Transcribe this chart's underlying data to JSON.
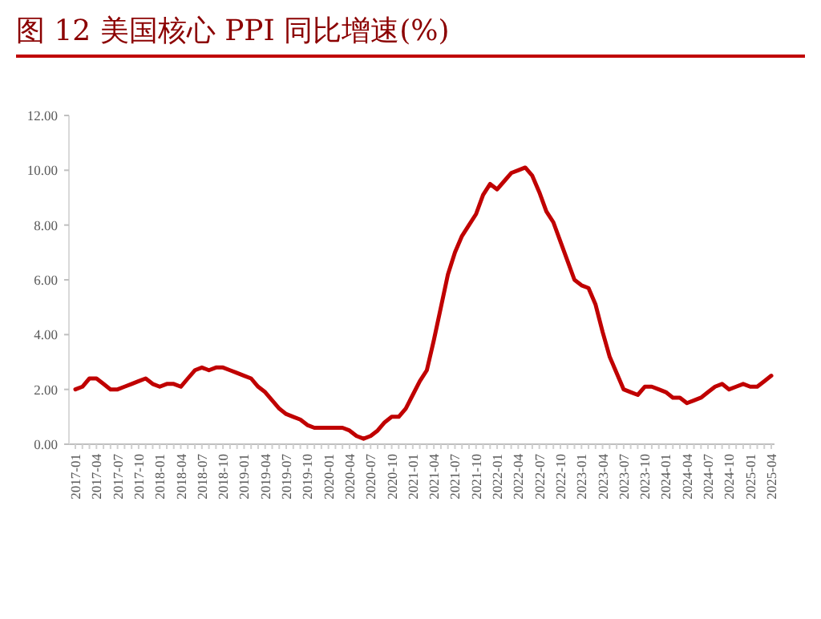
{
  "chart_data": {
    "type": "line",
    "title": "图 12 美国核心 PPI 同比增速(%)",
    "categories": [
      "2017-01",
      null,
      null,
      "2017-04",
      null,
      null,
      "2017-07",
      null,
      null,
      "2017-10",
      null,
      null,
      "2018-01",
      null,
      null,
      "2018-04",
      null,
      null,
      "2018-07",
      null,
      null,
      "2018-10",
      null,
      null,
      "2019-01",
      null,
      null,
      "2019-04",
      null,
      null,
      "2019-07",
      null,
      null,
      "2019-10",
      null,
      null,
      "2020-01",
      null,
      null,
      "2020-04",
      null,
      null,
      "2020-07",
      null,
      null,
      "2020-10",
      null,
      null,
      "2021-01",
      null,
      null,
      "2021-04",
      null,
      null,
      "2021-07",
      null,
      null,
      "2021-10",
      null,
      null,
      "2022-01",
      null,
      null,
      "2022-04",
      null,
      null,
      "2022-07",
      null,
      null,
      "2022-10",
      null,
      null,
      "2023-01",
      null,
      null,
      "2023-04",
      null,
      null,
      "2023-07",
      null,
      null,
      "2023-10",
      null,
      null,
      "2024-01",
      null,
      null,
      "2024-04",
      null,
      null,
      "2024-07",
      null,
      null,
      "2024-10",
      null,
      null,
      "2025-01",
      null,
      null,
      "2025-04"
    ],
    "series": [
      {
        "color": "#c00000",
        "values": [
          2.0,
          2.1,
          2.4,
          2.4,
          2.2,
          2.0,
          2.0,
          2.1,
          2.2,
          2.3,
          2.4,
          2.2,
          2.1,
          2.2,
          2.2,
          2.1,
          2.4,
          2.7,
          2.8,
          2.7,
          2.8,
          2.8,
          2.7,
          2.6,
          2.5,
          2.4,
          2.1,
          1.9,
          1.6,
          1.3,
          1.1,
          1.0,
          0.9,
          0.7,
          0.6,
          0.6,
          0.6,
          0.6,
          0.6,
          0.5,
          0.3,
          0.2,
          0.3,
          0.5,
          0.8,
          1.0,
          1.0,
          1.3,
          1.8,
          2.3,
          2.7,
          3.8,
          5.0,
          6.2,
          7.0,
          7.6,
          8.0,
          8.4,
          9.1,
          9.5,
          9.3,
          9.6,
          9.9,
          10.0,
          10.1,
          9.8,
          9.2,
          8.5,
          8.1,
          7.4,
          6.7,
          6.0,
          5.8,
          5.7,
          5.1,
          4.1,
          3.2,
          2.6,
          2.0,
          1.9,
          1.8,
          2.1,
          2.1,
          2.0,
          1.9,
          1.7,
          1.7,
          1.5,
          1.6,
          1.7,
          1.9,
          2.1,
          2.2,
          2.0,
          2.1,
          2.2,
          2.1,
          2.1,
          2.3,
          2.5
        ]
      }
    ],
    "ylim": [
      0,
      12
    ],
    "yticks": [
      {
        "value": 0,
        "label": "0.00"
      },
      {
        "value": 2,
        "label": "2.00"
      },
      {
        "value": 4,
        "label": "4.00"
      },
      {
        "value": 6,
        "label": "6.00"
      },
      {
        "value": 8,
        "label": "8.00"
      },
      {
        "value": 10,
        "label": "10.00"
      },
      {
        "value": 12,
        "label": "12.00"
      }
    ],
    "grid": false,
    "marker": "none",
    "line_style": "solid"
  }
}
